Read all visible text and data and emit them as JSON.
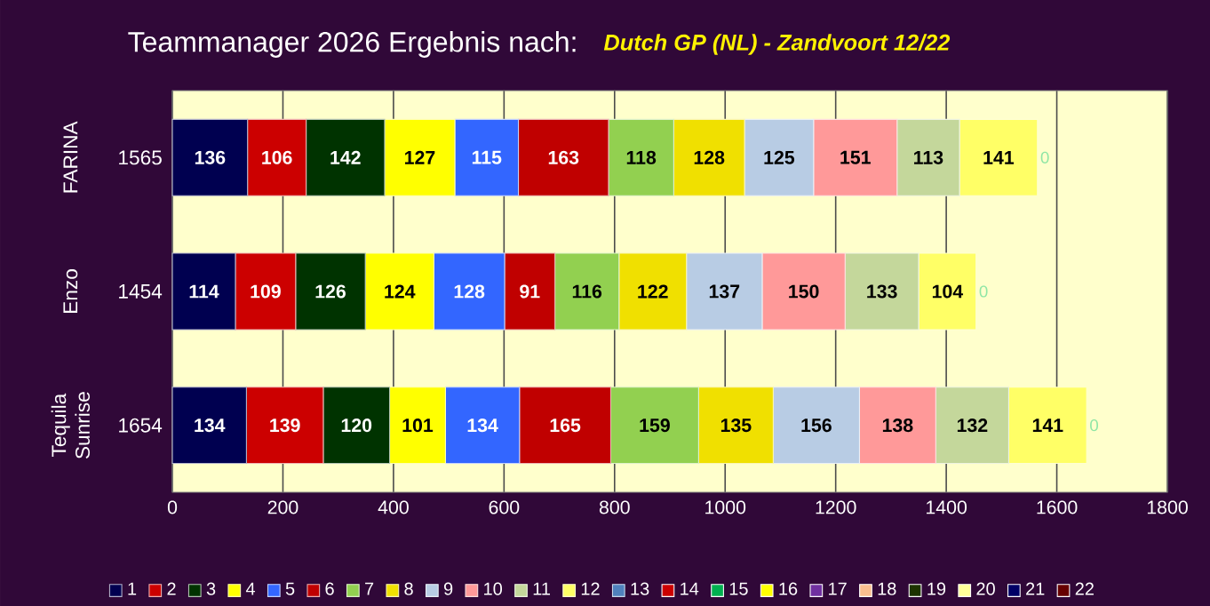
{
  "chart_data": {
    "type": "bar",
    "orientation": "horizontal",
    "stacked": true,
    "title": "Teammanager 2026 Ergebnis nach:",
    "subtitle": "Dutch GP (NL) - Zandvoort  12/22",
    "categories": [
      "FARINA",
      "Enzo",
      "Tequila Sunrise"
    ],
    "totals": [
      "1565",
      "1454",
      "1654"
    ],
    "xlim": [
      0,
      1800
    ],
    "xticks": [
      0,
      200,
      400,
      600,
      800,
      1000,
      1200,
      1400,
      1600,
      1800
    ],
    "grid": "x",
    "legend": "bottom",
    "data_labels": true,
    "series": [
      {
        "name": "1",
        "color": "#000050",
        "values": [
          136,
          114,
          134
        ]
      },
      {
        "name": "2",
        "color": "#cc0000",
        "values": [
          106,
          109,
          139
        ]
      },
      {
        "name": "3",
        "color": "#003300",
        "values": [
          142,
          126,
          120
        ]
      },
      {
        "name": "4",
        "color": "#ffff00",
        "values": [
          127,
          124,
          101
        ]
      },
      {
        "name": "5",
        "color": "#3366ff",
        "values": [
          115,
          128,
          134
        ]
      },
      {
        "name": "6",
        "color": "#c00000",
        "values": [
          163,
          91,
          165
        ]
      },
      {
        "name": "7",
        "color": "#92d050",
        "values": [
          118,
          116,
          159
        ]
      },
      {
        "name": "8",
        "color": "#f0e000",
        "values": [
          128,
          122,
          135
        ]
      },
      {
        "name": "9",
        "color": "#b8cce4",
        "values": [
          125,
          137,
          156
        ]
      },
      {
        "name": "10",
        "color": "#ff9999",
        "values": [
          151,
          150,
          138
        ]
      },
      {
        "name": "11",
        "color": "#c4d79b",
        "values": [
          113,
          133,
          132
        ]
      },
      {
        "name": "12",
        "color": "#ffff66",
        "values": [
          141,
          104,
          141
        ]
      },
      {
        "name": "13",
        "color": "#4f81bd",
        "values": [
          0,
          0,
          0
        ]
      },
      {
        "name": "14",
        "color": "#cc0000",
        "values": [
          null,
          null,
          null
        ]
      },
      {
        "name": "15",
        "color": "#00b050",
        "values": [
          null,
          null,
          null
        ]
      },
      {
        "name": "16",
        "color": "#ffff00",
        "values": [
          null,
          null,
          null
        ]
      },
      {
        "name": "17",
        "color": "#7030a0",
        "values": [
          null,
          null,
          null
        ]
      },
      {
        "name": "18",
        "color": "#fabf8f",
        "values": [
          null,
          null,
          null
        ]
      },
      {
        "name": "19",
        "color": "#1d3300",
        "values": [
          null,
          null,
          null
        ]
      },
      {
        "name": "20",
        "color": "#ffff99",
        "values": [
          null,
          null,
          null
        ]
      },
      {
        "name": "21",
        "color": "#000066",
        "values": [
          null,
          null,
          null
        ]
      },
      {
        "name": "22",
        "color": "#660000",
        "values": [
          null,
          null,
          null
        ]
      }
    ]
  }
}
